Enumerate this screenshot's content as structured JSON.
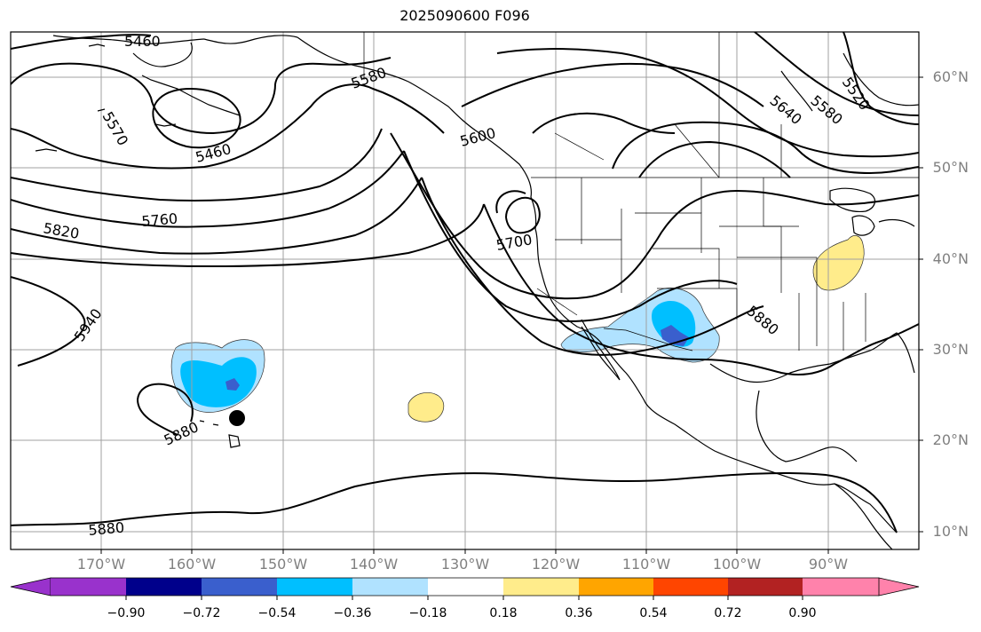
{
  "title": "2025090600 F096",
  "lat_labels": [
    "60°N",
    "50°N",
    "40°N",
    "30°N",
    "20°N",
    "10°N"
  ],
  "lon_labels": [
    "170°W",
    "160°W",
    "150°W",
    "140°W",
    "130°W",
    "120°W",
    "110°W",
    "100°W",
    "90°W"
  ],
  "contour_labels": [
    "5460",
    "5580",
    "5570",
    "5460",
    "5820",
    "5760",
    "5700",
    "5940",
    "5880",
    "5880",
    "5640",
    "5580",
    "5520",
    "5600",
    "5880"
  ],
  "colorbar": {
    "ticks": [
      "−0.90",
      "−0.72",
      "−0.54",
      "−0.36",
      "−0.18",
      "0.18",
      "0.36",
      "0.54",
      "0.72",
      "0.90"
    ],
    "colors": [
      "#9932cc",
      "#00008b",
      "#3a5fcd",
      "#00bfff",
      "#b0e2ff",
      "#ffffff",
      "#ffec8b",
      "#ffa500",
      "#ff4500",
      "#b22222",
      "#ff82ab"
    ]
  },
  "anomaly_colors": {
    "light_blue": "#b0e2ff",
    "deep_sky_blue": "#00bfff",
    "royal_blue": "#3a5fcd",
    "yellow": "#ffec8b"
  }
}
